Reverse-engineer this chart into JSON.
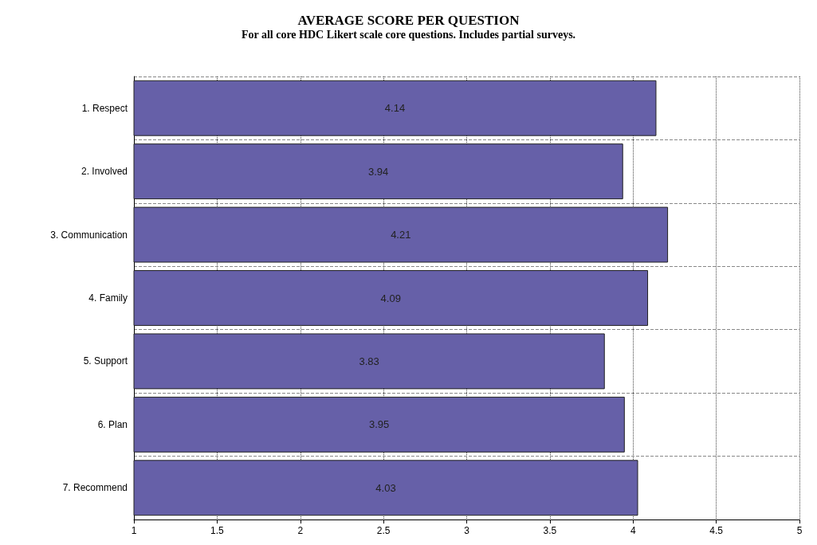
{
  "chart_data": {
    "type": "bar",
    "orientation": "horizontal",
    "title": "AVERAGE SCORE PER QUESTION",
    "subtitle": "For all core HDC Likert scale core questions. Includes partial surveys.",
    "categories": [
      "1. Respect",
      "2. Involved",
      "3. Communication",
      "4. Family",
      "5. Support",
      "6. Plan",
      "7. Recommend"
    ],
    "values": [
      4.14,
      3.94,
      4.21,
      4.09,
      3.83,
      3.95,
      4.03
    ],
    "color": "#6660a8",
    "xlim": [
      1,
      5
    ],
    "xticks": [
      1,
      1.5,
      2,
      2.5,
      3,
      3.5,
      4,
      4.5,
      5
    ],
    "grid": true,
    "data_labels": true
  }
}
